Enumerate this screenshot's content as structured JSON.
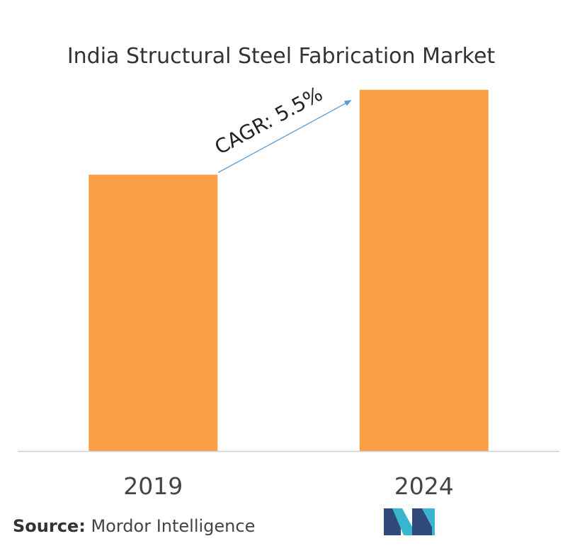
{
  "chart_data": {
    "type": "bar",
    "title": "India Structural Steel Fabrication Market",
    "categories": [
      "2019",
      "2024"
    ],
    "values": [
      1.0,
      1.307
    ],
    "ylim": [
      0,
      1.35
    ],
    "show_value_axis": false,
    "grid": false,
    "bar_color": "#F99F45",
    "annotation": {
      "text": "CAGR: 5.5%",
      "arrow_color": "#5B9BD5",
      "from_category": "2019",
      "to_category": "2024"
    }
  },
  "source": {
    "label": "Source:",
    "text": "Mordor Intelligence"
  },
  "logo": {
    "icon": "mordor-intelligence-logo",
    "colors": [
      "#2F4A7A",
      "#39B6CE"
    ]
  }
}
